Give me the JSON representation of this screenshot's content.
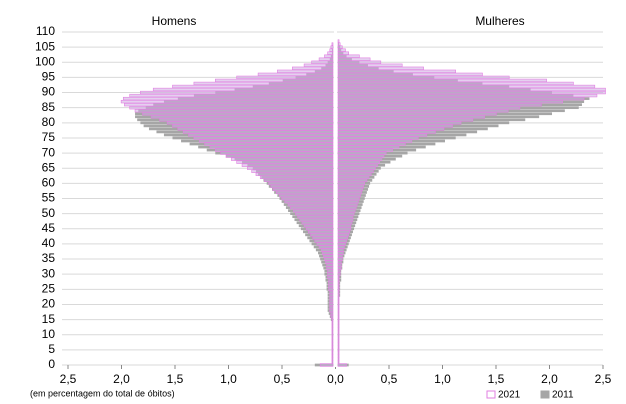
{
  "chart_data": {
    "type": "pyramid",
    "x_note": "(em percentagem do total de óbitos)",
    "xlim": [
      -2.5,
      2.5
    ],
    "xticks": [
      {
        "value": -2.5,
        "label": "2,5"
      },
      {
        "value": -2.0,
        "label": "2,0"
      },
      {
        "value": -1.5,
        "label": "1,5"
      },
      {
        "value": -1.0,
        "label": "1,0"
      },
      {
        "value": -0.5,
        "label": "0,5"
      },
      {
        "value": 0,
        "label": "0,0"
      },
      {
        "value": 0.5,
        "label": "0,5"
      },
      {
        "value": 1.0,
        "label": "1,0"
      },
      {
        "value": 1.5,
        "label": "1,5"
      },
      {
        "value": 2.0,
        "label": "2,0"
      },
      {
        "value": 2.5,
        "label": "2,5"
      }
    ],
    "ylim": [
      0,
      110
    ],
    "yticks": [
      0,
      5,
      10,
      15,
      20,
      25,
      30,
      35,
      40,
      45,
      50,
      55,
      60,
      65,
      70,
      75,
      80,
      85,
      90,
      95,
      100,
      105,
      110
    ],
    "grid": true,
    "ages": [
      0,
      1,
      2,
      3,
      4,
      5,
      6,
      7,
      8,
      9,
      10,
      11,
      12,
      13,
      14,
      15,
      16,
      17,
      18,
      19,
      20,
      21,
      22,
      23,
      24,
      25,
      26,
      27,
      28,
      29,
      30,
      31,
      32,
      33,
      34,
      35,
      36,
      37,
      38,
      39,
      40,
      41,
      42,
      43,
      44,
      45,
      46,
      47,
      48,
      49,
      50,
      51,
      52,
      53,
      54,
      55,
      56,
      57,
      58,
      59,
      60,
      61,
      62,
      63,
      64,
      65,
      66,
      67,
      68,
      69,
      70,
      71,
      72,
      73,
      74,
      75,
      76,
      77,
      78,
      79,
      80,
      81,
      82,
      83,
      84,
      85,
      86,
      87,
      88,
      89,
      90,
      91,
      92,
      93,
      94,
      95,
      96,
      97,
      98,
      99,
      100,
      101,
      102,
      103,
      104,
      105,
      106,
      107,
      108,
      109,
      110
    ],
    "series": [
      {
        "name": "2021",
        "color": "#e27fe2"
      },
      {
        "name": "2011",
        "color": "#a6a6a6"
      }
    ],
    "panels": [
      {
        "title": "Homens",
        "values": [
          [
            0.12,
            0.01,
            0.01,
            0.01,
            0.01,
            0.01,
            0.01,
            0.01,
            0.01,
            0.01,
            0.01,
            0.01,
            0.01,
            0.01,
            0.01,
            0.01,
            0.02,
            0.02,
            0.03,
            0.03,
            0.03,
            0.03,
            0.03,
            0.03,
            0.03,
            0.04,
            0.04,
            0.04,
            0.04,
            0.05,
            0.05,
            0.05,
            0.06,
            0.06,
            0.07,
            0.08,
            0.09,
            0.1,
            0.11,
            0.13,
            0.15,
            0.17,
            0.19,
            0.21,
            0.23,
            0.25,
            0.27,
            0.29,
            0.31,
            0.33,
            0.35,
            0.37,
            0.4,
            0.42,
            0.45,
            0.48,
            0.5,
            0.53,
            0.56,
            0.58,
            0.6,
            0.64,
            0.68,
            0.72,
            0.76,
            0.8,
            0.85,
            0.9,
            0.95,
            1.0,
            1.05,
            1.1,
            1.15,
            1.2,
            1.25,
            1.3,
            1.35,
            1.4,
            1.45,
            1.5,
            1.55,
            1.62,
            1.7,
            1.78,
            1.85,
            1.9,
            1.95,
            1.98,
            1.96,
            1.9,
            1.8,
            1.68,
            1.5,
            1.3,
            1.1,
            0.9,
            0.7,
            0.52,
            0.38,
            0.27,
            0.2,
            0.13,
            0.08,
            0.05,
            0.03,
            0.02,
            0.01,
            0,
            0,
            0,
            0
          ],
          [
            0.17,
            0.01,
            0.01,
            0.01,
            0.01,
            0.01,
            0.01,
            0.01,
            0.01,
            0.01,
            0.01,
            0.01,
            0.01,
            0.01,
            0.01,
            0.02,
            0.03,
            0.04,
            0.05,
            0.05,
            0.05,
            0.05,
            0.05,
            0.05,
            0.05,
            0.06,
            0.06,
            0.06,
            0.07,
            0.07,
            0.08,
            0.08,
            0.09,
            0.1,
            0.11,
            0.12,
            0.13,
            0.14,
            0.16,
            0.18,
            0.2,
            0.22,
            0.24,
            0.26,
            0.28,
            0.3,
            0.32,
            0.34,
            0.36,
            0.38,
            0.4,
            0.42,
            0.44,
            0.46,
            0.48,
            0.5,
            0.52,
            0.55,
            0.57,
            0.6,
            0.62,
            0.65,
            0.67,
            0.7,
            0.72,
            0.75,
            0.8,
            0.85,
            0.92,
            1.0,
            1.1,
            1.18,
            1.26,
            1.34,
            1.42,
            1.5,
            1.58,
            1.65,
            1.72,
            1.77,
            1.8,
            1.83,
            1.85,
            1.85,
            1.82,
            1.75,
            1.68,
            1.58,
            1.45,
            1.3,
            1.1,
            0.92,
            0.75,
            0.6,
            0.47,
            0.35,
            0.25,
            0.17,
            0.11,
            0.07,
            0.05,
            0.03,
            0.02,
            0.01,
            0.01,
            0,
            0,
            0,
            0,
            0,
            0
          ]
        ]
      },
      {
        "title": "Mulheres",
        "values": [
          [
            0.08,
            0.01,
            0.01,
            0.01,
            0.01,
            0.01,
            0.01,
            0.01,
            0.01,
            0.01,
            0.01,
            0.01,
            0.01,
            0.01,
            0.01,
            0.01,
            0.01,
            0.01,
            0.01,
            0.01,
            0.01,
            0.01,
            0.01,
            0.01,
            0.01,
            0.01,
            0.01,
            0.01,
            0.01,
            0.01,
            0.02,
            0.02,
            0.03,
            0.03,
            0.03,
            0.04,
            0.04,
            0.05,
            0.05,
            0.06,
            0.07,
            0.08,
            0.09,
            0.1,
            0.11,
            0.12,
            0.12,
            0.13,
            0.14,
            0.14,
            0.15,
            0.16,
            0.17,
            0.18,
            0.19,
            0.2,
            0.21,
            0.22,
            0.23,
            0.24,
            0.25,
            0.27,
            0.29,
            0.31,
            0.33,
            0.35,
            0.37,
            0.39,
            0.41,
            0.43,
            0.45,
            0.51,
            0.57,
            0.63,
            0.69,
            0.75,
            0.83,
            0.91,
            0.99,
            1.07,
            1.15,
            1.26,
            1.37,
            1.48,
            1.59,
            1.7,
            1.9,
            2.1,
            2.3,
            2.42,
            2.5,
            2.5,
            2.4,
            2.2,
            1.95,
            1.6,
            1.35,
            1.1,
            0.8,
            0.6,
            0.4,
            0.3,
            0.2,
            0.1,
            0.07,
            0.04,
            0.02,
            0.01,
            0,
            0,
            0
          ],
          [
            0.1,
            0.01,
            0.01,
            0.01,
            0.01,
            0.01,
            0.01,
            0.01,
            0.01,
            0.01,
            0.01,
            0.01,
            0.01,
            0.01,
            0.01,
            0.01,
            0.01,
            0.01,
            0.01,
            0.01,
            0.01,
            0.01,
            0.01,
            0.02,
            0.02,
            0.02,
            0.02,
            0.02,
            0.03,
            0.03,
            0.03,
            0.03,
            0.04,
            0.04,
            0.05,
            0.05,
            0.06,
            0.07,
            0.08,
            0.09,
            0.1,
            0.11,
            0.12,
            0.13,
            0.14,
            0.15,
            0.16,
            0.17,
            0.18,
            0.19,
            0.2,
            0.21,
            0.22,
            0.23,
            0.24,
            0.25,
            0.26,
            0.27,
            0.28,
            0.29,
            0.3,
            0.32,
            0.34,
            0.36,
            0.38,
            0.4,
            0.44,
            0.49,
            0.54,
            0.6,
            0.65,
            0.73,
            0.82,
            0.91,
            1.0,
            1.1,
            1.2,
            1.3,
            1.4,
            1.5,
            1.6,
            1.75,
            1.88,
            2.0,
            2.12,
            2.25,
            2.28,
            2.3,
            2.35,
            2.2,
            2.0,
            1.8,
            1.6,
            1.35,
            1.12,
            0.9,
            0.7,
            0.52,
            0.38,
            0.28,
            0.2,
            0.13,
            0.08,
            0.05,
            0.03,
            0.02,
            0.01,
            0,
            0,
            0,
            0
          ]
        ]
      }
    ]
  }
}
